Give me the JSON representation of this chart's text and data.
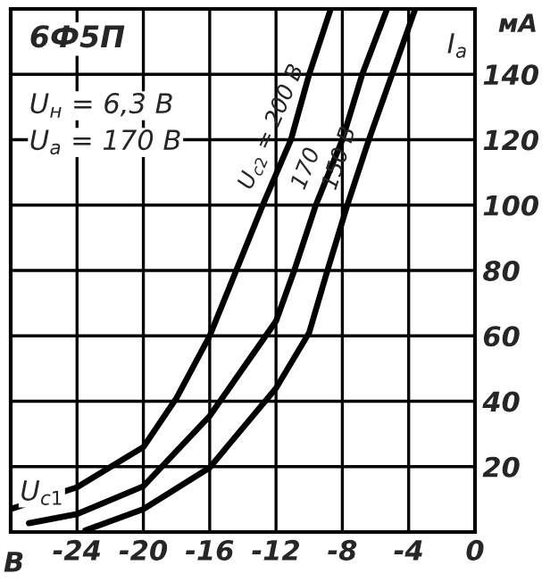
{
  "chart_data": {
    "type": "line",
    "title": "6Ф5П",
    "xlabel": "В",
    "ylabel": "мА",
    "annotations": [
      "U$_{н}$ = 6,3 В",
      "U$_{а}$ = 170 В",
      "I$_{а}$",
      "U$_{c1}$"
    ],
    "series": [
      {
        "name": "U$_{c2}$ = 200 В",
        "color": "#000000",
        "x": [
          -28,
          -24,
          -20,
          -18,
          -16,
          -14.4,
          -12.8,
          -11.1,
          -10,
          -8.7
        ],
        "values": [
          7,
          13.7,
          26,
          41,
          60,
          80,
          100,
          120,
          140,
          160
        ]
      },
      {
        "name": "170",
        "color": "#000000",
        "x": [
          -26.9,
          -24,
          -20,
          -16,
          -12,
          -10.9,
          -9.6,
          -8,
          -6.8,
          -5.3
        ],
        "values": [
          2.7,
          5.5,
          14,
          35.5,
          64.5,
          80,
          100,
          120,
          140,
          160
        ]
      },
      {
        "name": "150 В",
        "color": "#000000",
        "x": [
          -23.5,
          -20,
          -16,
          -12,
          -10,
          -8.9,
          -7.7,
          -6.4,
          -5,
          -3.6
        ],
        "values": [
          0.5,
          7,
          19.7,
          44,
          61,
          80,
          100,
          120,
          140,
          160
        ]
      }
    ],
    "xlim": [
      -28,
      0
    ],
    "xticks": [
      -24,
      -20,
      -16,
      -12,
      -8,
      -4,
      0
    ],
    "ylim": [
      0,
      160
    ],
    "yticks": [
      20,
      40,
      60,
      80,
      100,
      120,
      140
    ],
    "grid": true,
    "legend": false,
    "marker": "none",
    "line_style": "solid"
  }
}
